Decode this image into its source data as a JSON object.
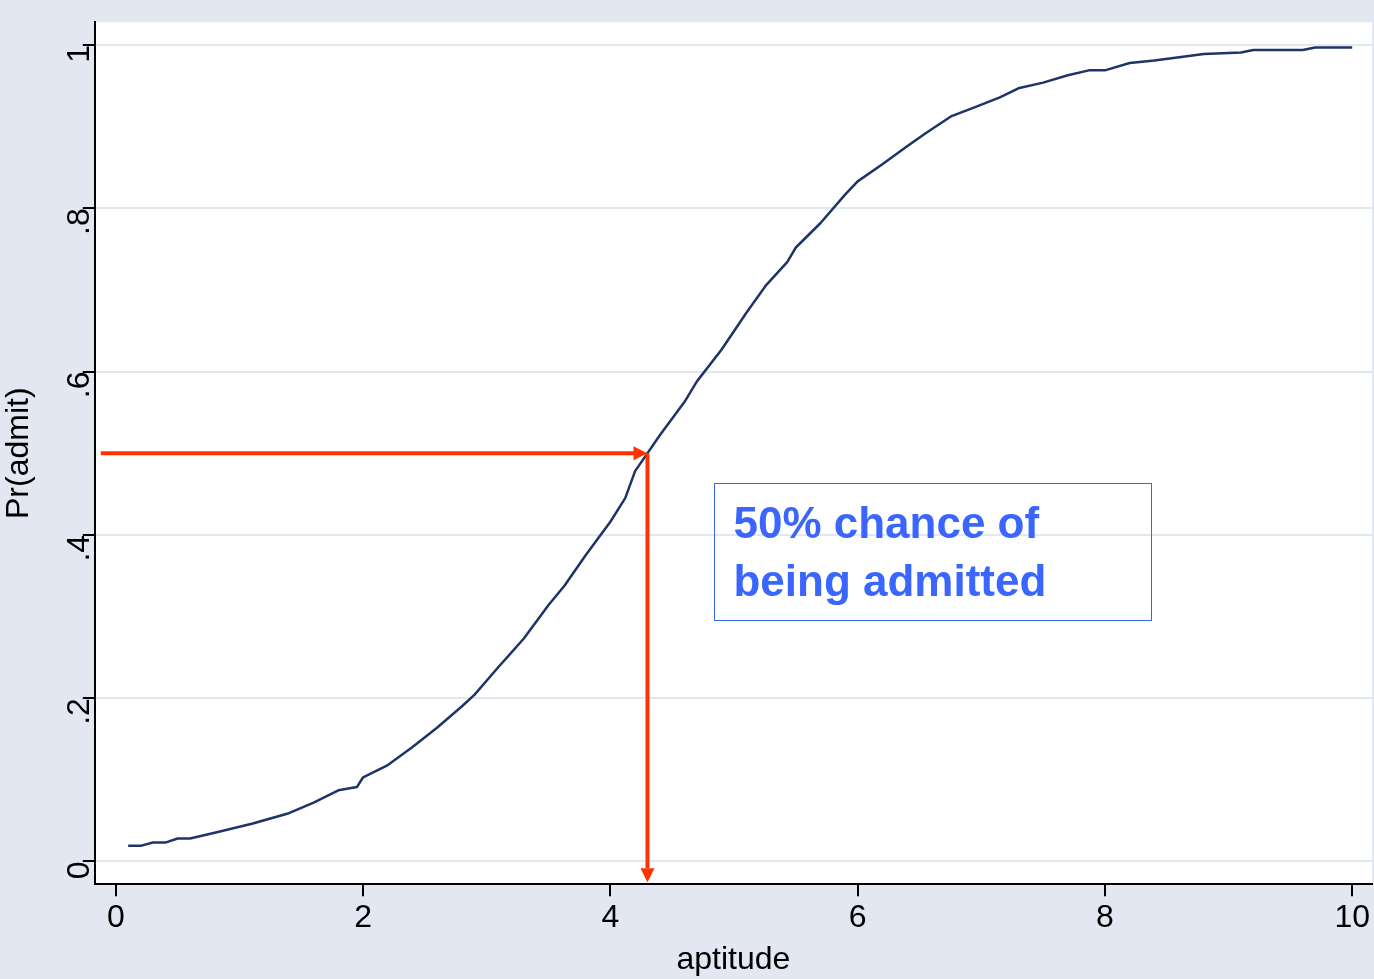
{
  "chart_data": {
    "type": "line",
    "xlabel": "aptitude",
    "ylabel": "Pr(admit)",
    "series": [
      {
        "color": "#1f3466",
        "x": [
          0.1,
          0.2,
          0.3,
          0.4,
          0.5,
          0.6,
          0.8,
          1.1,
          1.4,
          1.6,
          1.8,
          1.95,
          2.0,
          2.2,
          2.4,
          2.6,
          2.8,
          2.9,
          3.1,
          3.3,
          3.5,
          3.63,
          3.8,
          4.0,
          4.12,
          4.2,
          4.4,
          4.6,
          4.7,
          4.9,
          5.1,
          5.26,
          5.43,
          5.5,
          5.7,
          5.9,
          6.0,
          6.2,
          6.4,
          6.55,
          6.76,
          6.95,
          7.15,
          7.3,
          7.5,
          7.7,
          7.87,
          8.0,
          8.2,
          8.4,
          8.6,
          8.8,
          9.1,
          9.2,
          9.6,
          9.7,
          10.0
        ],
        "values": [
          0.019,
          0.019,
          0.023,
          0.023,
          0.028,
          0.028,
          0.035,
          0.046,
          0.059,
          0.072,
          0.087,
          0.091,
          0.103,
          0.118,
          0.14,
          0.164,
          0.19,
          0.204,
          0.239,
          0.273,
          0.314,
          0.338,
          0.375,
          0.416,
          0.445,
          0.478,
          0.522,
          0.563,
          0.588,
          0.627,
          0.672,
          0.706,
          0.734,
          0.752,
          0.782,
          0.817,
          0.833,
          0.854,
          0.876,
          0.892,
          0.913,
          0.924,
          0.936,
          0.947,
          0.954,
          0.963,
          0.969,
          0.969,
          0.978,
          0.981,
          0.985,
          0.989,
          0.991,
          0.994,
          0.994,
          0.997,
          0.997
        ]
      }
    ],
    "xlim": [
      -0.17,
      10.16
    ],
    "xticks": [
      0,
      2,
      4,
      6,
      8,
      10
    ],
    "ylim": [
      -0.028,
      1.028
    ],
    "yticks": [
      0,
      {
        "value": 0.2,
        "label": ".2"
      },
      {
        "value": 0.4,
        "label": ".4"
      },
      {
        "value": 0.6,
        "label": ".6"
      },
      {
        "value": 0.8,
        "label": ".8"
      },
      1
    ],
    "grid": "y",
    "legend": false,
    "marker": "none",
    "line_style": "solid",
    "annotations": [
      {
        "text": "50% chance of being admitted",
        "x": 4.3,
        "y": 0.5
      }
    ]
  }
}
